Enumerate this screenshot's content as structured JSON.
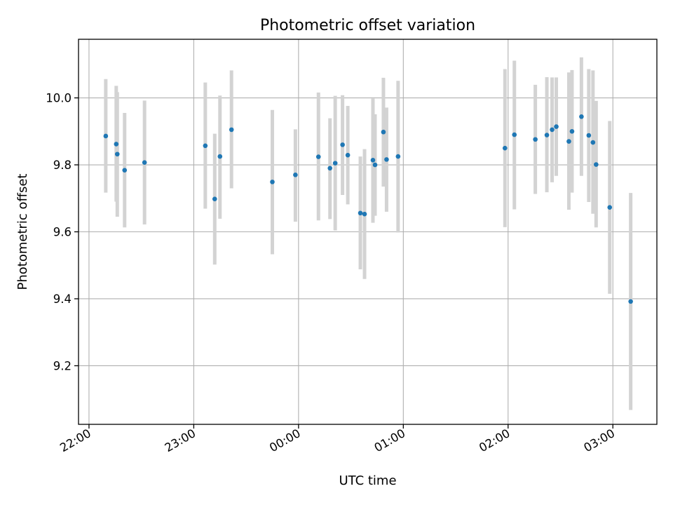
{
  "chart_data": {
    "type": "scatter",
    "title": "Photometric offset variation",
    "xlabel": "UTC time",
    "ylabel": "Photometric offset",
    "x_unit": "hours since 22:00 UTC",
    "xlim": [
      -0.1,
      5.42
    ],
    "ylim": [
      9.025,
      10.175
    ],
    "x_ticks": [
      {
        "value": 0,
        "label": "22:00"
      },
      {
        "value": 1,
        "label": "23:00"
      },
      {
        "value": 2,
        "label": "00:00"
      },
      {
        "value": 3,
        "label": "01:00"
      },
      {
        "value": 4,
        "label": "02:00"
      },
      {
        "value": 5,
        "label": "03:00"
      }
    ],
    "y_ticks": [
      {
        "value": 9.2,
        "label": "9.2"
      },
      {
        "value": 9.4,
        "label": "9.4"
      },
      {
        "value": 9.6,
        "label": "9.6"
      },
      {
        "value": 9.8,
        "label": "9.8"
      },
      {
        "value": 10.0,
        "label": "10.0"
      }
    ],
    "grid": true,
    "marker_color": "#1f77b4",
    "errorbar_color": "#d3d3d3",
    "points": [
      {
        "x": 0.16,
        "y": 9.886,
        "ylo": 9.717,
        "yhi": 10.056
      },
      {
        "x": 0.26,
        "y": 9.862,
        "ylo": 9.69,
        "yhi": 10.036
      },
      {
        "x": 0.27,
        "y": 9.832,
        "ylo": 9.645,
        "yhi": 10.017
      },
      {
        "x": 0.34,
        "y": 9.784,
        "ylo": 9.613,
        "yhi": 9.955
      },
      {
        "x": 0.53,
        "y": 9.807,
        "ylo": 9.622,
        "yhi": 9.992
      },
      {
        "x": 1.11,
        "y": 9.857,
        "ylo": 9.669,
        "yhi": 10.046
      },
      {
        "x": 1.2,
        "y": 9.698,
        "ylo": 9.502,
        "yhi": 9.893
      },
      {
        "x": 1.25,
        "y": 9.825,
        "ylo": 9.639,
        "yhi": 10.007
      },
      {
        "x": 1.36,
        "y": 9.905,
        "ylo": 9.73,
        "yhi": 10.082
      },
      {
        "x": 1.75,
        "y": 9.749,
        "ylo": 9.533,
        "yhi": 9.964
      },
      {
        "x": 1.97,
        "y": 9.77,
        "ylo": 9.63,
        "yhi": 9.906
      },
      {
        "x": 2.19,
        "y": 9.824,
        "ylo": 9.634,
        "yhi": 10.016
      },
      {
        "x": 2.3,
        "y": 9.79,
        "ylo": 9.638,
        "yhi": 9.939
      },
      {
        "x": 2.35,
        "y": 9.805,
        "ylo": 9.604,
        "yhi": 10.006
      },
      {
        "x": 2.42,
        "y": 9.86,
        "ylo": 9.71,
        "yhi": 10.008
      },
      {
        "x": 2.47,
        "y": 9.829,
        "ylo": 9.682,
        "yhi": 9.976
      },
      {
        "x": 2.59,
        "y": 9.656,
        "ylo": 9.488,
        "yhi": 9.825
      },
      {
        "x": 2.63,
        "y": 9.653,
        "ylo": 9.459,
        "yhi": 9.847
      },
      {
        "x": 2.71,
        "y": 9.814,
        "ylo": 9.627,
        "yhi": 9.998
      },
      {
        "x": 2.73,
        "y": 9.8,
        "ylo": 9.648,
        "yhi": 9.951
      },
      {
        "x": 2.81,
        "y": 9.898,
        "ylo": 9.735,
        "yhi": 10.06
      },
      {
        "x": 2.84,
        "y": 9.816,
        "ylo": 9.66,
        "yhi": 9.971
      },
      {
        "x": 2.95,
        "y": 9.825,
        "ylo": 9.598,
        "yhi": 10.051
      },
      {
        "x": 3.97,
        "y": 9.85,
        "ylo": 9.614,
        "yhi": 10.086
      },
      {
        "x": 4.06,
        "y": 9.89,
        "ylo": 9.667,
        "yhi": 10.111
      },
      {
        "x": 4.26,
        "y": 9.876,
        "ylo": 9.713,
        "yhi": 10.039
      },
      {
        "x": 4.37,
        "y": 9.889,
        "ylo": 9.718,
        "yhi": 10.062
      },
      {
        "x": 4.42,
        "y": 9.905,
        "ylo": 9.748,
        "yhi": 10.061
      },
      {
        "x": 4.46,
        "y": 9.914,
        "ylo": 9.767,
        "yhi": 10.061
      },
      {
        "x": 4.58,
        "y": 9.87,
        "ylo": 9.666,
        "yhi": 10.076
      },
      {
        "x": 4.61,
        "y": 9.9,
        "ylo": 9.717,
        "yhi": 10.083
      },
      {
        "x": 4.7,
        "y": 9.944,
        "ylo": 9.767,
        "yhi": 10.121
      },
      {
        "x": 4.77,
        "y": 9.888,
        "ylo": 9.689,
        "yhi": 10.086
      },
      {
        "x": 4.81,
        "y": 9.867,
        "ylo": 9.654,
        "yhi": 10.082
      },
      {
        "x": 4.84,
        "y": 9.801,
        "ylo": 9.613,
        "yhi": 9.991
      },
      {
        "x": 4.97,
        "y": 9.673,
        "ylo": 9.415,
        "yhi": 9.931
      },
      {
        "x": 5.17,
        "y": 9.392,
        "ylo": 9.068,
        "yhi": 9.716
      }
    ]
  }
}
